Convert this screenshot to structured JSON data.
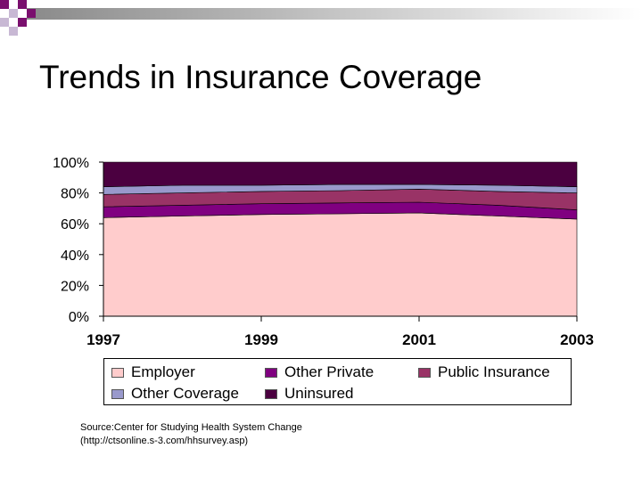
{
  "slide": {
    "title": "Trends in Insurance Coverage",
    "source_line1": "Source:Center for Studying Health System Change",
    "source_line2": "(http://ctsonline.s-3.com/hhsurvey.asp)"
  },
  "chart_data": {
    "type": "area",
    "stacked": true,
    "title": "",
    "xlabel": "",
    "ylabel": "",
    "x": [
      1997,
      1998,
      1999,
      2000,
      2001,
      2002,
      2003
    ],
    "x_tick_labels": [
      "1997",
      "1999",
      "2001",
      "2003"
    ],
    "y_tick_labels": [
      "0%",
      "20%",
      "40%",
      "60%",
      "80%",
      "100%"
    ],
    "ylim": [
      0,
      100
    ],
    "grid": false,
    "legend_position": "bottom",
    "series": [
      {
        "name": "Employer",
        "color": "#FFCCCC",
        "values": [
          64,
          65,
          66,
          66.5,
          67,
          65,
          63
        ]
      },
      {
        "name": "Other Private",
        "color": "#800080",
        "values": [
          7,
          7,
          7,
          7,
          7,
          7,
          6
        ]
      },
      {
        "name": "Public Insurance",
        "color": "#993366",
        "values": [
          8,
          8,
          8,
          8,
          8.5,
          9,
          11
        ]
      },
      {
        "name": "Other Coverage",
        "color": "#9999CC",
        "values": [
          5,
          5,
          4,
          4,
          3,
          4,
          4
        ]
      },
      {
        "name": "Uninsured",
        "color": "#4B0040",
        "values": [
          16,
          15,
          15,
          14.5,
          14.5,
          15,
          16
        ]
      }
    ]
  }
}
